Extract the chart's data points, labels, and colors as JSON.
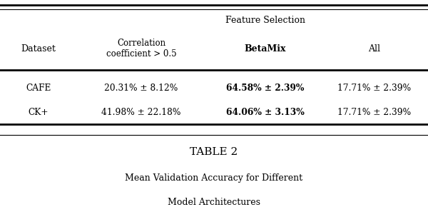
{
  "title_line1": "TABLE 2",
  "title_line2": "Mean Validation Accuracy for Different",
  "title_line3": "Model Architectures",
  "feature_selection_label": "Feature Selection",
  "col_headers": [
    "Dataset",
    "Correlation\ncoefficient > 0.5",
    "BetaMix",
    "All"
  ],
  "col_headers_bold": [
    false,
    false,
    true,
    false
  ],
  "rows": [
    [
      "CAFE",
      "20.31% ± 8.12%",
      "64.58% ± 2.39%",
      "17.71% ± 2.39%"
    ],
    [
      "CK+",
      "41.98% ± 22.18%",
      "64.06% ± 3.13%",
      "17.71% ± 2.39%"
    ]
  ],
  "rows_bold_col": [
    2,
    2
  ],
  "bg_color": "#ffffff",
  "text_color": "#000000",
  "line_color": "#000000"
}
